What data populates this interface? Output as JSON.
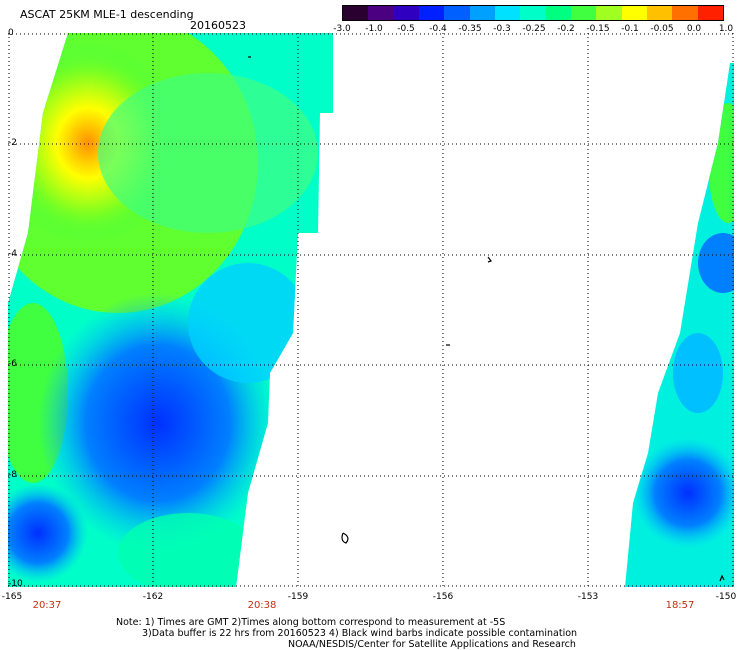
{
  "header": {
    "title": "ASCAT 25KM MLE-1 descending",
    "date": "20160523"
  },
  "colorbar": {
    "colors": [
      "#2a0030",
      "#4a0080",
      "#3000c0",
      "#0020ff",
      "#0060ff",
      "#00a0ff",
      "#00e0ff",
      "#00ffc8",
      "#00ff80",
      "#40ff40",
      "#a0ff20",
      "#ffff00",
      "#ffc000",
      "#ff7000",
      "#ff2000"
    ],
    "labels": [
      "-3.0",
      "-1.0",
      "-0.5",
      "-0.4",
      "-0.35",
      "-0.3",
      "-0.25",
      "-0.2",
      "-0.15",
      "-0.1",
      "-0.05",
      "0.0",
      "1.0"
    ]
  },
  "axes": {
    "y_labels": [
      "0",
      "-2",
      "-4",
      "-6",
      "-8",
      "-10"
    ],
    "x_labels": [
      "-165",
      "-162",
      "-159",
      "-156",
      "-153",
      "-150"
    ]
  },
  "times": [
    "20:37",
    "20:38",
    "18:57"
  ],
  "notes": {
    "line1": "Note: 1) Times are GMT 2)Times along bottom correspond to measurement at -5S",
    "line2": "3)Data buffer is 22 hrs from 20160523 4) Black wind barbs indicate possible contamination",
    "line3": "NOAA/NESDIS/Center for Satellite Applications and Research"
  }
}
